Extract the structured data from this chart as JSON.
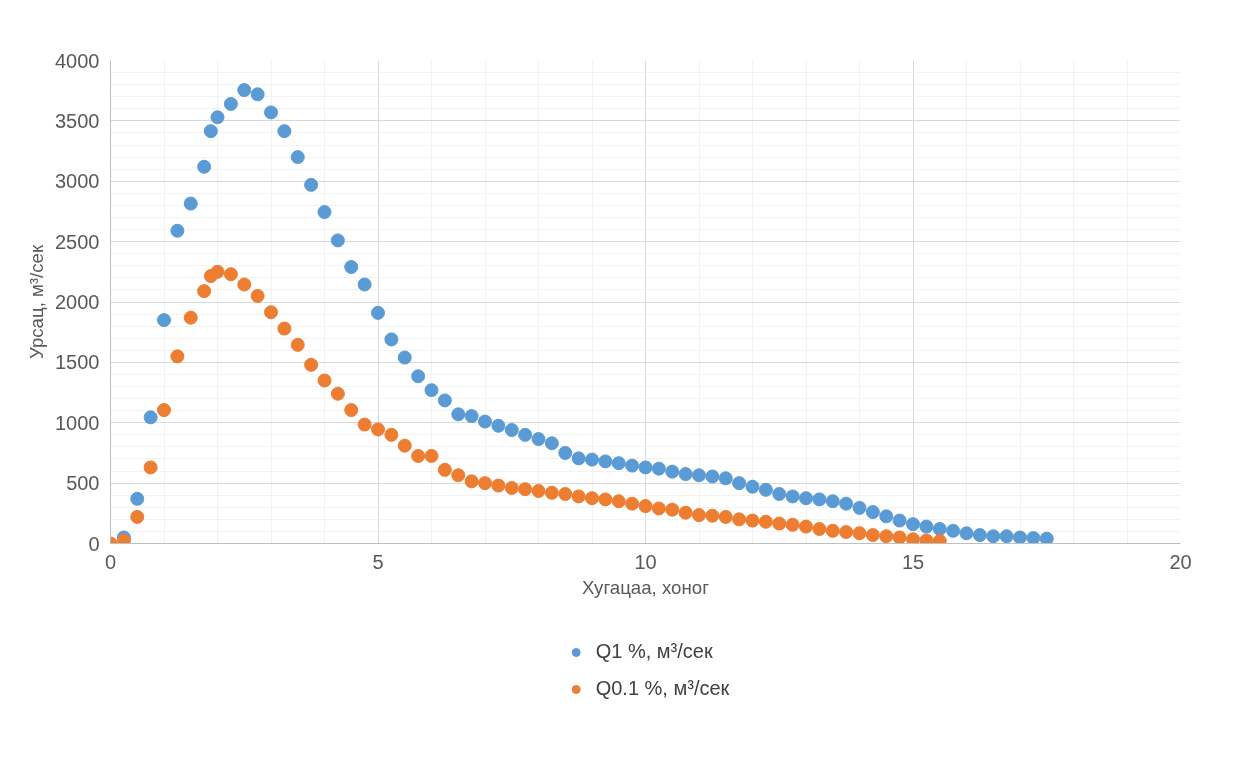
{
  "chart_data": {
    "type": "scatter",
    "xlabel": "Хугацаа, хоног",
    "ylabel": "Урсац, м³/сек",
    "xlim": [
      0,
      20
    ],
    "xticks": [
      0,
      5,
      10,
      15,
      20
    ],
    "ylim": [
      0,
      4000
    ],
    "yticks": [
      0,
      500,
      1000,
      1500,
      2000,
      2500,
      3000,
      3500,
      4000
    ],
    "grid": true,
    "legend": "bottom",
    "marker": "circle",
    "series": [
      {
        "name": "Q1 %, м³/сек",
        "color": "#5b9bd5",
        "x": [
          0.25,
          0.5,
          0.75,
          1.0,
          1.25,
          1.5,
          1.75,
          1.875,
          2.0,
          2.25,
          2.5,
          2.75,
          3.0,
          3.25,
          3.5,
          3.75,
          4.0,
          4.25,
          4.5,
          4.75,
          5.0,
          5.25,
          5.5,
          5.75,
          6.0,
          6.25,
          6.5,
          6.75,
          7.0,
          7.25,
          7.5,
          7.75,
          8.0,
          8.25,
          8.5,
          8.75,
          9.0,
          9.25,
          9.5,
          9.75,
          10.0,
          10.25,
          10.5,
          10.75,
          11.0,
          11.25,
          11.5,
          11.75,
          12.0,
          12.25,
          12.5,
          12.75,
          13.0,
          13.25,
          13.5,
          13.75,
          14.0,
          14.25,
          14.5,
          14.75,
          15.0,
          15.25,
          15.5,
          15.75,
          16.0,
          16.25,
          16.5,
          16.75,
          17.0,
          17.25,
          17.5
        ],
        "values": [
          50,
          370,
          1045,
          1850,
          2590,
          2815,
          3120,
          3415,
          3530,
          3640,
          3755,
          3720,
          3570,
          3415,
          3200,
          2970,
          2745,
          2510,
          2290,
          2145,
          1910,
          1690,
          1540,
          1385,
          1270,
          1185,
          1070,
          1055,
          1010,
          975,
          940,
          900,
          865,
          830,
          750,
          705,
          695,
          680,
          665,
          645,
          630,
          620,
          595,
          575,
          565,
          555,
          540,
          500,
          470,
          445,
          410,
          390,
          375,
          365,
          350,
          330,
          295,
          260,
          225,
          190,
          160,
          140,
          120,
          105,
          85,
          70,
          60,
          60,
          50,
          45,
          40
        ]
      },
      {
        "name": "Q0.1 %, м³/сек",
        "color": "#ed7d31",
        "x": [
          0,
          0.25,
          0.5,
          0.75,
          1.0,
          1.25,
          1.5,
          1.75,
          1.875,
          2.0,
          2.25,
          2.5,
          2.75,
          3.0,
          3.25,
          3.5,
          3.75,
          4.0,
          4.25,
          4.5,
          4.75,
          5.0,
          5.25,
          5.5,
          5.75,
          6.0,
          6.25,
          6.5,
          6.75,
          7.0,
          7.25,
          7.5,
          7.75,
          8.0,
          8.25,
          8.5,
          8.75,
          9.0,
          9.25,
          9.5,
          9.75,
          10.0,
          10.25,
          10.5,
          10.75,
          11.0,
          11.25,
          11.5,
          11.75,
          12.0,
          12.25,
          12.5,
          12.75,
          13.0,
          13.25,
          13.5,
          13.75,
          14.0,
          14.25,
          14.5,
          14.75,
          15.0,
          15.25,
          15.5
        ],
        "values": [
          0,
          25,
          220,
          630,
          1105,
          1550,
          1870,
          2090,
          2215,
          2250,
          2230,
          2145,
          2050,
          1915,
          1780,
          1645,
          1480,
          1350,
          1240,
          1105,
          985,
          945,
          900,
          810,
          725,
          725,
          610,
          565,
          515,
          500,
          480,
          460,
          450,
          435,
          420,
          410,
          390,
          375,
          365,
          350,
          330,
          310,
          290,
          280,
          255,
          235,
          230,
          220,
          200,
          190,
          180,
          165,
          155,
          140,
          120,
          105,
          95,
          85,
          70,
          60,
          50,
          35,
          25,
          20
        ]
      }
    ]
  }
}
